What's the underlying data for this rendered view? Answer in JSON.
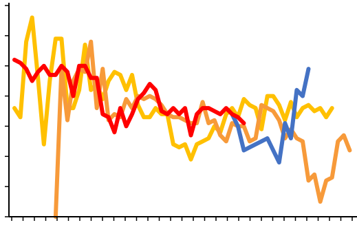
{
  "chart_data": {
    "type": "line",
    "title": "",
    "xlabel": "",
    "ylabel": "",
    "ylim": [
      0,
      7
    ],
    "y_ticks": [
      0,
      1,
      2,
      3,
      4,
      5,
      6,
      7
    ],
    "x_count": 50,
    "grid": false,
    "legend": "none",
    "series": [
      {
        "color": "#ffc000",
        "values": [
          3.6,
          3.3,
          5.8,
          6.6,
          4.6,
          2.4,
          4.5,
          5.9,
          5.9,
          3.6,
          3.6,
          4.2,
          5.7,
          4.2,
          4.4,
          3.9,
          4.5,
          4.8,
          4.7,
          4.2,
          4.7,
          3.7,
          3.3,
          3.3,
          3.6,
          3.4,
          3.4,
          2.4,
          2.3,
          2.4,
          1.9,
          2.4,
          2.5,
          2.6,
          3.0,
          2.8,
          3.4,
          3.6,
          3.3,
          3.9,
          3.7,
          3.6,
          2.9,
          4.0,
          4.0,
          3.7,
          3.2,
          3.8,
          3.3,
          3.6,
          3.7,
          3.5,
          3.6,
          3.3,
          3.6
        ],
        "x": [
          0,
          1,
          2,
          3,
          4,
          5,
          6,
          7,
          8,
          9,
          10,
          11,
          12,
          13,
          14,
          15,
          16,
          17,
          18,
          19,
          20,
          21,
          22,
          23,
          24,
          25,
          26,
          27,
          28,
          29,
          30,
          31,
          32,
          33,
          34,
          35,
          36,
          37,
          38,
          39,
          40,
          41,
          42,
          43,
          44,
          45,
          46,
          47,
          48,
          49,
          50,
          51,
          52,
          53,
          54
        ]
      },
      {
        "color": "#f79a3a",
        "values": [
          0.0,
          4.9,
          3.2,
          4.5,
          4.9,
          4.8,
          5.8,
          3.6,
          4.9,
          3.2,
          3.4,
          3.3,
          3.9,
          3.6,
          4.0,
          3.9,
          4.0,
          3.9,
          3.7,
          3.4,
          3.3,
          3.3,
          3.2,
          3.1,
          3.1,
          3.8,
          3.1,
          3.2,
          2.7,
          2.5,
          3.1,
          3.0,
          3.0,
          2.5,
          2.6,
          3.7,
          3.6,
          3.5,
          3.2,
          2.6,
          2.9,
          2.6,
          2.5,
          1.2,
          1.4,
          0.5,
          1.2,
          1.3,
          2.5,
          2.7,
          2.2
        ],
        "x": [
          7,
          8,
          9,
          10,
          11,
          12,
          13,
          14,
          15,
          16,
          17,
          18,
          19,
          20,
          21,
          22,
          23,
          24,
          25,
          26,
          27,
          28,
          29,
          30,
          31,
          32,
          33,
          34,
          35,
          36,
          37,
          38,
          39,
          40,
          41,
          42,
          43,
          44,
          45,
          46,
          47,
          48,
          49,
          50,
          51,
          52,
          53,
          54,
          55,
          56,
          57
        ]
      },
      {
        "color": "#4472c4",
        "values": [
          3.4,
          3.0,
          2.2,
          2.3,
          2.4,
          2.5,
          2.6,
          2.2,
          1.8,
          3.1,
          2.6,
          4.2,
          4.0,
          4.9
        ],
        "x": [
          37,
          38,
          39,
          40,
          41,
          42,
          43,
          44,
          45,
          46,
          47,
          48,
          49,
          50
        ]
      },
      {
        "color": "#ff0000",
        "values": [
          5.2,
          5.1,
          4.9,
          4.5,
          4.8,
          5.0,
          4.7,
          4.7,
          5.0,
          4.8,
          4.0,
          5.0,
          5.0,
          4.6,
          4.6,
          3.4,
          3.3,
          2.8,
          3.6,
          3.0,
          3.4,
          3.9,
          4.1,
          4.4,
          4.2,
          3.5,
          3.4,
          3.6,
          3.4,
          3.6,
          2.7,
          3.4,
          3.6,
          3.6,
          3.5,
          3.4,
          3.6,
          3.4,
          3.3,
          3.1
        ],
        "x": [
          0,
          1,
          2,
          3,
          4,
          5,
          6,
          7,
          8,
          9,
          10,
          11,
          12,
          13,
          14,
          15,
          16,
          17,
          18,
          19,
          20,
          21,
          22,
          23,
          24,
          25,
          26,
          27,
          28,
          29,
          30,
          31,
          32,
          33,
          34,
          35,
          36,
          37,
          38,
          39
        ]
      }
    ]
  }
}
